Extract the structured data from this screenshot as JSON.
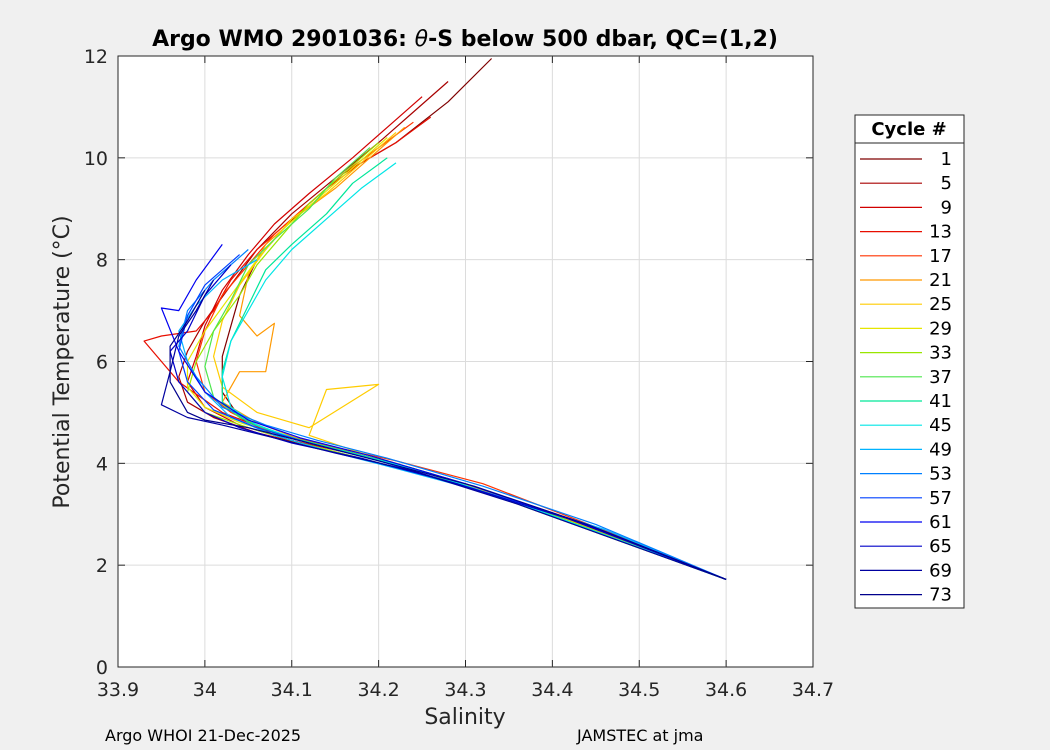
{
  "footer": {
    "left": "Argo WHOI 21-Dec-2025",
    "right": "JAMSTEC at jma"
  },
  "chart_data": {
    "type": "line",
    "title_prefix": "Argo WMO 2901036: ",
    "title_theta": "θ",
    "title_suffix": "-S below 500 dbar,  QC=(1,2)",
    "xlabel": "Salinity",
    "ylabel": "Potential Temperature (°C)",
    "xlim": [
      33.9,
      34.7
    ],
    "ylim": [
      0,
      12
    ],
    "xticks": [
      33.9,
      34.0,
      34.1,
      34.2,
      34.3,
      34.4,
      34.5,
      34.6,
      34.7
    ],
    "xtick_labels": [
      "33.9",
      "34",
      "34.1",
      "34.2",
      "34.3",
      "34.4",
      "34.5",
      "34.6",
      "34.7"
    ],
    "yticks": [
      0,
      2,
      4,
      6,
      8,
      10,
      12
    ],
    "ytick_labels": [
      "0",
      "2",
      "4",
      "6",
      "8",
      "10",
      "12"
    ],
    "grid": true,
    "legend": {
      "title": "Cycle #",
      "location": "outside-right",
      "entries": [
        {
          "label": "1",
          "color": "#7f0000"
        },
        {
          "label": "5",
          "color": "#a80000"
        },
        {
          "label": "9",
          "color": "#d10000"
        },
        {
          "label": "13",
          "color": "#e80e00"
        },
        {
          "label": "17",
          "color": "#ff3300"
        },
        {
          "label": "21",
          "color": "#ff9900"
        },
        {
          "label": "25",
          "color": "#ffcc00"
        },
        {
          "label": "29",
          "color": "#e6e600"
        },
        {
          "label": "33",
          "color": "#99e600"
        },
        {
          "label": "37",
          "color": "#4de64d"
        },
        {
          "label": "41",
          "color": "#00e699"
        },
        {
          "label": "45",
          "color": "#00e6e6"
        },
        {
          "label": "49",
          "color": "#00b3ff"
        },
        {
          "label": "53",
          "color": "#0080ff"
        },
        {
          "label": "57",
          "color": "#0040ff"
        },
        {
          "label": "61",
          "color": "#0000f0"
        },
        {
          "label": "65",
          "color": "#0000c8"
        },
        {
          "label": "69",
          "color": "#0000a0"
        },
        {
          "label": "73",
          "color": "#00008c"
        }
      ]
    },
    "series": [
      {
        "name": "1",
        "color": "#7f0000",
        "S": [
          34.33,
          34.28,
          34.22,
          34.16,
          34.12,
          34.09,
          34.06,
          34.04,
          34.03,
          34.02,
          34.02,
          34.04,
          34.08,
          34.13,
          34.2,
          34.3,
          34.42,
          34.6
        ],
        "T": [
          11.95,
          11.1,
          10.3,
          9.7,
          9.1,
          8.6,
          8.0,
          7.3,
          6.7,
          6.1,
          5.4,
          4.9,
          4.55,
          4.3,
          4.0,
          3.55,
          2.9,
          1.72
        ]
      },
      {
        "name": "5",
        "color": "#a80000",
        "S": [
          34.28,
          34.24,
          34.2,
          34.15,
          34.1,
          34.06,
          34.03,
          34.0,
          33.98,
          33.97,
          33.98,
          34.01,
          34.06,
          34.12,
          34.19,
          34.29,
          34.41,
          34.6
        ],
        "T": [
          11.5,
          10.9,
          10.3,
          9.6,
          8.9,
          8.2,
          7.5,
          6.8,
          6.2,
          5.7,
          5.2,
          4.9,
          4.6,
          4.35,
          4.05,
          3.6,
          2.95,
          1.72
        ]
      },
      {
        "name": "9",
        "color": "#d10000",
        "S": [
          34.25,
          34.21,
          34.17,
          34.12,
          34.08,
          34.05,
          34.02,
          34.0,
          33.99,
          33.98,
          34.0,
          34.04,
          34.1,
          34.18,
          34.28,
          34.4,
          34.6
        ],
        "T": [
          11.2,
          10.6,
          10.0,
          9.3,
          8.7,
          8.1,
          7.4,
          6.7,
          6.1,
          5.6,
          5.1,
          4.75,
          4.45,
          4.15,
          3.7,
          3.0,
          1.72
        ]
      },
      {
        "name": "13",
        "color": "#e80e00",
        "S": [
          34.26,
          34.22,
          34.18,
          34.14,
          34.1,
          34.06,
          34.03,
          34.01,
          33.99,
          33.95,
          33.93,
          33.97,
          34.02,
          34.08,
          34.15,
          34.24,
          34.36,
          34.6
        ],
        "T": [
          10.8,
          10.3,
          9.9,
          9.4,
          8.8,
          8.2,
          7.6,
          7.0,
          6.6,
          6.5,
          6.4,
          5.6,
          5.0,
          4.6,
          4.3,
          3.9,
          3.2,
          1.72
        ]
      },
      {
        "name": "17",
        "color": "#ff3300",
        "S": [
          34.24,
          34.2,
          34.16,
          34.12,
          34.08,
          34.05,
          34.02,
          34.0,
          33.99,
          34.0,
          34.03,
          34.07,
          34.14,
          34.22,
          34.32,
          34.45,
          34.6
        ],
        "T": [
          10.7,
          10.2,
          9.7,
          9.1,
          8.5,
          7.9,
          7.3,
          6.6,
          6.0,
          5.4,
          5.0,
          4.65,
          4.35,
          4.05,
          3.6,
          2.75,
          1.72
        ]
      },
      {
        "name": "21",
        "color": "#ff9900",
        "S": [
          34.23,
          34.19,
          34.15,
          34.11,
          34.07,
          34.05,
          34.04,
          34.06,
          34.08,
          34.07,
          34.04,
          34.02,
          34.06,
          34.12,
          34.19,
          34.28,
          34.4,
          34.6
        ],
        "T": [
          10.6,
          10.0,
          9.4,
          8.9,
          8.3,
          7.7,
          6.9,
          6.5,
          6.75,
          5.8,
          5.8,
          5.2,
          4.8,
          4.4,
          4.1,
          3.7,
          3.0,
          1.72
        ]
      },
      {
        "name": "25",
        "color": "#ffcc00",
        "S": [
          34.22,
          34.18,
          34.14,
          34.1,
          34.07,
          34.04,
          34.02,
          34.01,
          34.02,
          34.06,
          34.12,
          34.2,
          34.14,
          34.12,
          34.18,
          34.27,
          34.4,
          34.6
        ],
        "T": [
          10.5,
          9.9,
          9.3,
          8.8,
          8.2,
          7.5,
          6.8,
          6.1,
          5.5,
          5.0,
          4.7,
          5.55,
          5.45,
          4.55,
          4.2,
          3.75,
          3.0,
          1.72
        ]
      },
      {
        "name": "29",
        "color": "#e6e600",
        "S": [
          34.21,
          34.17,
          34.13,
          34.09,
          34.06,
          34.03,
          34.0,
          33.98,
          33.98,
          34.0,
          34.04,
          34.1,
          34.17,
          34.26,
          34.38,
          34.6
        ],
        "T": [
          10.4,
          9.8,
          9.2,
          8.6,
          8.0,
          7.3,
          6.6,
          6.0,
          5.5,
          5.1,
          4.8,
          4.5,
          4.2,
          3.8,
          3.1,
          1.72
        ]
      },
      {
        "name": "33",
        "color": "#99e600",
        "S": [
          34.2,
          34.16,
          34.12,
          34.09,
          34.06,
          34.04,
          34.01,
          33.99,
          33.98,
          34.0,
          34.05,
          34.11,
          34.18,
          34.27,
          34.39,
          34.6
        ],
        "T": [
          10.3,
          9.7,
          9.1,
          8.5,
          7.9,
          7.3,
          6.6,
          6.0,
          5.4,
          5.0,
          4.7,
          4.4,
          4.1,
          3.7,
          3.05,
          1.72
        ]
      },
      {
        "name": "37",
        "color": "#4de64d",
        "S": [
          34.19,
          34.15,
          34.12,
          34.08,
          34.05,
          34.03,
          34.01,
          34.0,
          34.01,
          34.04,
          34.09,
          34.16,
          34.24,
          34.36,
          34.6
        ],
        "T": [
          10.2,
          9.6,
          9.0,
          8.4,
          7.9,
          7.2,
          6.6,
          5.9,
          5.3,
          4.9,
          4.55,
          4.25,
          3.9,
          3.2,
          1.72
        ]
      },
      {
        "name": "41",
        "color": "#00e699",
        "S": [
          34.21,
          34.17,
          34.14,
          34.1,
          34.07,
          34.05,
          34.03,
          34.02,
          34.02,
          34.05,
          34.1,
          34.17,
          34.25,
          34.37,
          34.6
        ],
        "T": [
          10.0,
          9.5,
          8.9,
          8.3,
          7.8,
          7.1,
          6.4,
          5.8,
          5.2,
          4.8,
          4.5,
          4.2,
          3.85,
          3.15,
          1.72
        ]
      },
      {
        "name": "45",
        "color": "#00e6e6",
        "S": [
          34.22,
          34.18,
          34.14,
          34.1,
          34.07,
          34.05,
          34.03,
          34.02,
          34.03,
          34.06,
          34.11,
          34.18,
          34.26,
          34.38,
          34.6
        ],
        "T": [
          9.9,
          9.4,
          8.8,
          8.2,
          7.6,
          7.0,
          6.4,
          5.7,
          5.1,
          4.75,
          4.45,
          4.15,
          3.8,
          3.1,
          1.72
        ]
      },
      {
        "name": "49",
        "color": "#00b3ff",
        "S": [
          34.06,
          34.02,
          33.99,
          33.97,
          33.98,
          34.0,
          34.03,
          34.08,
          34.14,
          34.22,
          34.33,
          34.46,
          34.6
        ],
        "T": [
          8.0,
          7.6,
          7.1,
          6.6,
          6.0,
          5.4,
          4.9,
          4.55,
          4.25,
          3.9,
          3.4,
          2.7,
          1.72
        ]
      },
      {
        "name": "53",
        "color": "#0080ff",
        "S": [
          34.05,
          34.01,
          33.98,
          33.97,
          33.99,
          34.02,
          34.07,
          34.13,
          34.21,
          34.32,
          34.45,
          34.6
        ],
        "T": [
          8.2,
          7.6,
          7.0,
          6.3,
          5.7,
          5.1,
          4.75,
          4.45,
          4.1,
          3.55,
          2.8,
          1.72
        ]
      },
      {
        "name": "57",
        "color": "#0040ff",
        "S": [
          34.04,
          34.0,
          33.98,
          33.97,
          33.98,
          34.01,
          34.06,
          34.12,
          34.2,
          34.31,
          34.44,
          34.6
        ],
        "T": [
          8.1,
          7.5,
          6.9,
          6.2,
          5.6,
          5.05,
          4.7,
          4.4,
          4.05,
          3.5,
          2.8,
          1.72
        ]
      },
      {
        "name": "61",
        "color": "#0000f0",
        "S": [
          34.02,
          33.99,
          33.97,
          33.95,
          33.97,
          34.0,
          34.05,
          34.11,
          34.19,
          34.3,
          34.43,
          34.6
        ],
        "T": [
          8.3,
          7.6,
          7.0,
          7.05,
          6.2,
          5.4,
          4.85,
          4.5,
          4.15,
          3.6,
          2.85,
          1.72
        ]
      },
      {
        "name": "65",
        "color": "#0000c8",
        "S": [
          34.03,
          34.0,
          33.98,
          33.96,
          33.97,
          34.0,
          34.04,
          34.1,
          34.18,
          34.29,
          34.42,
          34.6
        ],
        "T": [
          7.9,
          7.3,
          6.6,
          6.2,
          5.6,
          5.0,
          4.7,
          4.4,
          4.1,
          3.6,
          2.9,
          1.72
        ]
      },
      {
        "name": "69",
        "color": "#0000a0",
        "S": [
          34.01,
          33.99,
          33.97,
          33.96,
          33.95,
          33.98,
          34.02,
          34.08,
          34.15,
          34.24,
          34.36,
          34.6
        ],
        "T": [
          7.6,
          7.0,
          6.5,
          5.8,
          5.15,
          4.9,
          4.75,
          4.5,
          4.2,
          3.85,
          3.2,
          1.72
        ]
      },
      {
        "name": "73",
        "color": "#00008c",
        "S": [
          34.0,
          33.98,
          33.96,
          33.96,
          33.98,
          34.0,
          34.05,
          34.12,
          34.2,
          34.31,
          34.44,
          34.6
        ],
        "T": [
          7.4,
          6.8,
          6.3,
          5.6,
          5.0,
          4.85,
          4.7,
          4.4,
          4.05,
          3.55,
          2.8,
          1.72
        ]
      }
    ]
  }
}
